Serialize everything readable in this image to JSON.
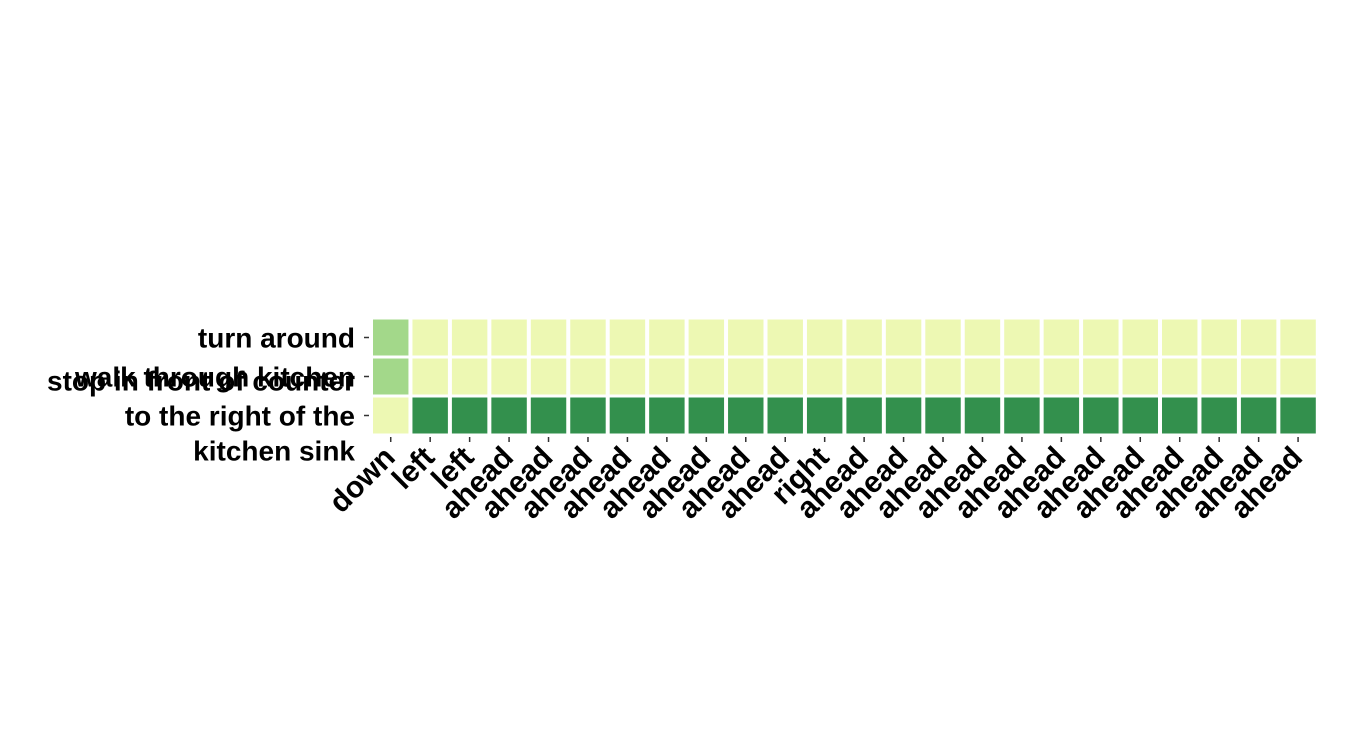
{
  "chart_data": {
    "type": "heatmap",
    "title": "",
    "xlabel": "",
    "ylabel": "",
    "x_categories": [
      "down",
      "left",
      "left",
      "ahead",
      "ahead",
      "ahead",
      "ahead",
      "ahead",
      "ahead",
      "ahead",
      "ahead",
      "right",
      "ahead",
      "ahead",
      "ahead",
      "ahead",
      "ahead",
      "ahead",
      "ahead",
      "ahead",
      "ahead",
      "ahead",
      "ahead",
      "ahead"
    ],
    "y_categories": [
      [
        "turn around"
      ],
      [
        "walk through kitchen"
      ],
      [
        "stop in front of counter",
        "to the right of the",
        "kitchen sink"
      ]
    ],
    "values": [
      [
        0.4,
        0.05,
        0.05,
        0.05,
        0.05,
        0.05,
        0.05,
        0.05,
        0.05,
        0.05,
        0.05,
        0.05,
        0.05,
        0.05,
        0.05,
        0.05,
        0.05,
        0.05,
        0.05,
        0.05,
        0.05,
        0.05,
        0.05,
        0.05
      ],
      [
        0.4,
        0.05,
        0.05,
        0.05,
        0.05,
        0.05,
        0.05,
        0.05,
        0.05,
        0.05,
        0.05,
        0.05,
        0.05,
        0.05,
        0.05,
        0.05,
        0.05,
        0.05,
        0.05,
        0.05,
        0.05,
        0.05,
        0.05,
        0.05
      ],
      [
        0.05,
        0.9,
        0.9,
        0.9,
        0.9,
        0.9,
        0.9,
        0.9,
        0.9,
        0.9,
        0.9,
        0.9,
        0.9,
        0.9,
        0.9,
        0.9,
        0.9,
        0.9,
        0.9,
        0.9,
        0.9,
        0.9,
        0.9,
        0.9
      ]
    ],
    "colorscale": [
      "#f7fcb9",
      "#8ecf7e",
      "#1c8041"
    ],
    "grid": false,
    "legend": "none"
  }
}
